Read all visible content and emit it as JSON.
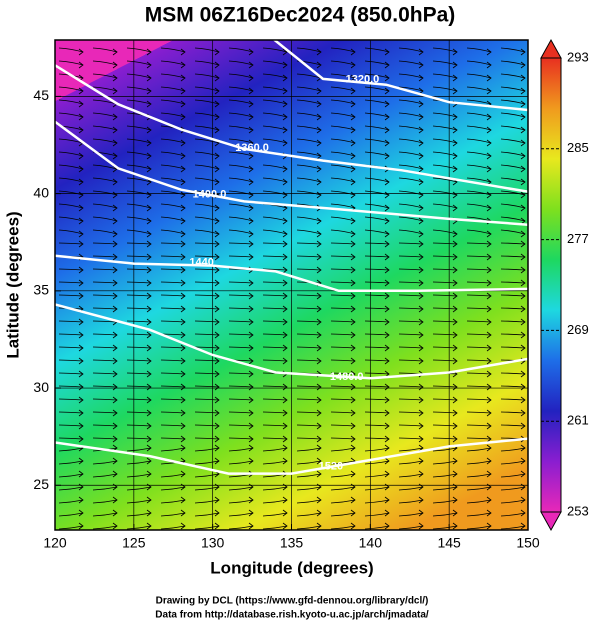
{
  "chart_data": {
    "type": "map",
    "title": "MSM 06Z16Dec2024 (850.0hPa)",
    "xlabel": "Longitude (degrees)",
    "ylabel": "Latitude  (degrees)",
    "xlim": [
      120,
      150
    ],
    "xticks": [
      120,
      125,
      130,
      135,
      140,
      145,
      150
    ],
    "ylim": [
      22.7,
      47.9
    ],
    "yticks": [
      25,
      30,
      35,
      40,
      45
    ],
    "colorbar": {
      "lim": [
        253,
        293
      ],
      "ticks": [
        253,
        261,
        269,
        277,
        285,
        293
      ],
      "colors": [
        "#e828b8",
        "#8a1ed0",
        "#2222c0",
        "#1e6ee8",
        "#1ed8e0",
        "#1ed860",
        "#7ee01e",
        "#e8e81e",
        "#f09a1e",
        "#e83020"
      ]
    },
    "contours": [
      {
        "value": 1320,
        "label": "1320.0"
      },
      {
        "value": 1360,
        "label": "1360.0"
      },
      {
        "value": 1400,
        "label": "1400.0"
      },
      {
        "value": 1440,
        "label": "1440"
      },
      {
        "value": 1480,
        "label": "1480.0"
      },
      {
        "value": 1520,
        "label": "1520"
      }
    ],
    "footer": [
      "Drawing by DCL (https://www.gfd-dennou.org/library/dcl/)",
      "Data from http://database.rish.kyoto-u.ac.jp/arch/jmadata/"
    ]
  }
}
